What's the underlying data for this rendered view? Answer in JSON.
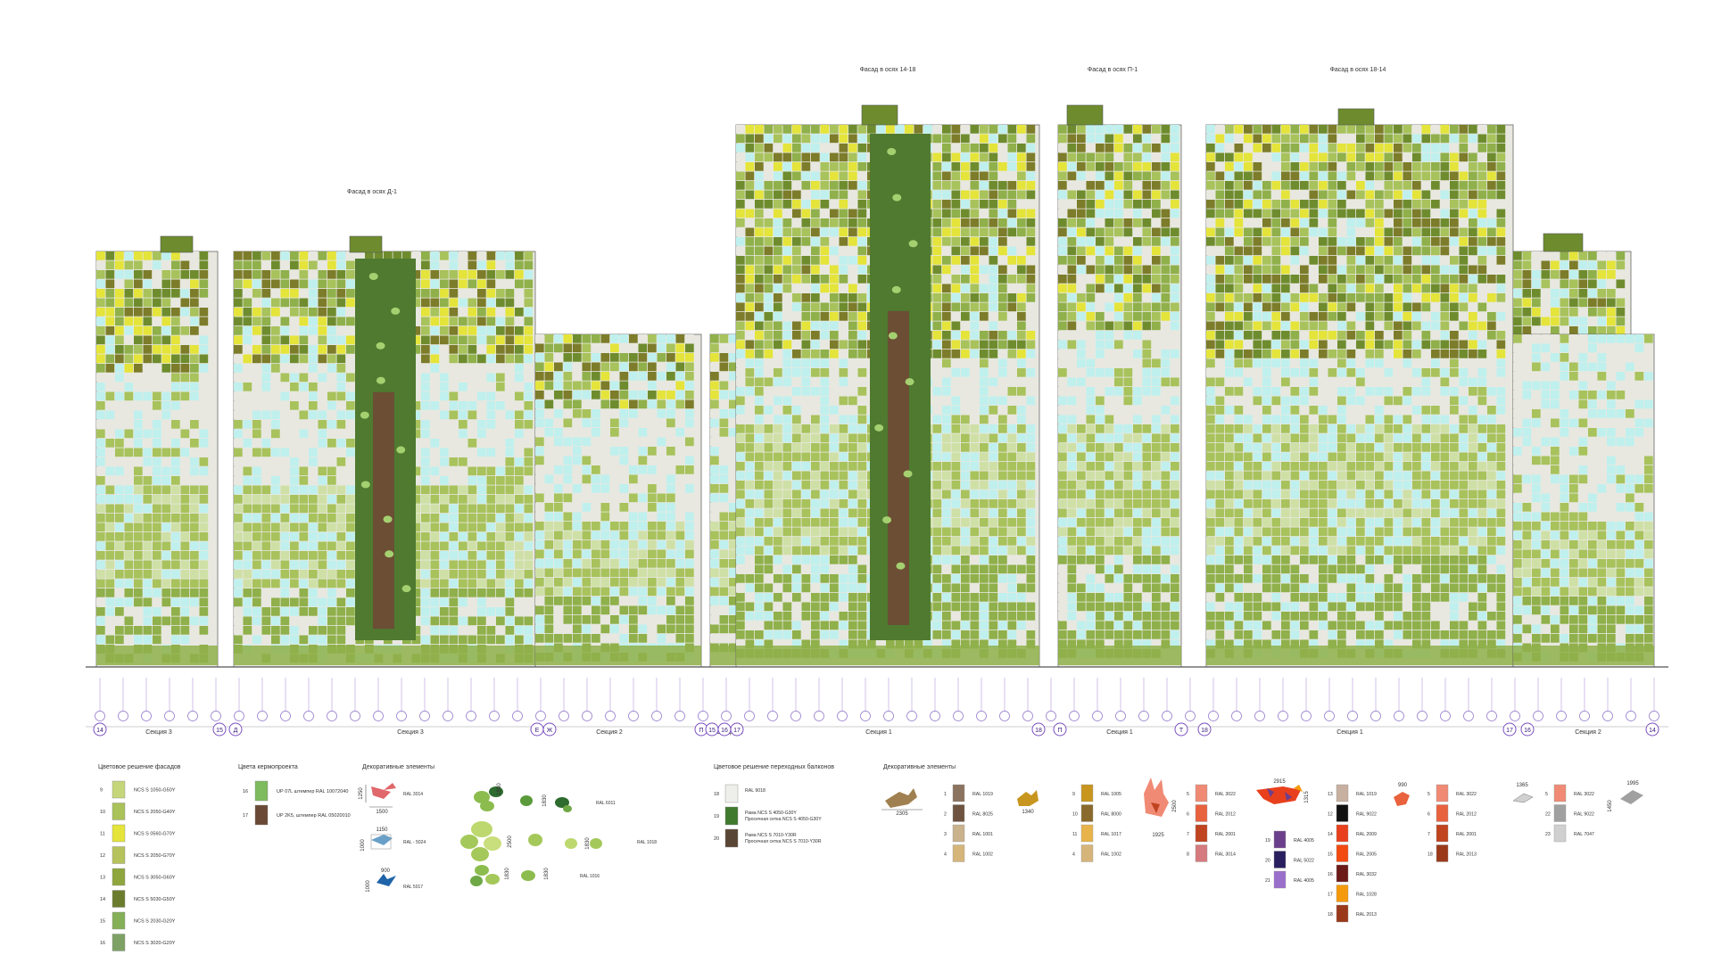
{
  "facade_titles": {
    "d1": "Фасад в осях Д-1",
    "14_18": "Фасад в осях 14-18",
    "p1": "Фасад в осях П-1",
    "18_14": "Фасад в осях 18-14"
  },
  "sections": [
    {
      "label": "Секция 3"
    },
    {
      "label": "Секция 3"
    },
    {
      "label": "Секция 2"
    },
    {
      "label": "Секция 2"
    },
    {
      "label": "Секция 1"
    },
    {
      "label": "Секция 1"
    },
    {
      "label": "Секция 1"
    },
    {
      "label": "Секция 2"
    }
  ],
  "axis_marks": [
    "14",
    "15",
    "Д",
    "Е",
    "Ж",
    "П",
    "15",
    "16",
    "17",
    "18",
    "П",
    "Т",
    "18",
    "17",
    "16",
    "14"
  ],
  "facade_colors": {
    "light": "#e8e8e0",
    "cyan": "#bff0ee",
    "green1": "#8fb04a",
    "green2": "#a8c25c",
    "green3": "#6e8c2e",
    "yellow": "#e4e43a",
    "olive": "#7c7c2a",
    "brown": "#6b4e34",
    "dark_green": "#4f7a30"
  },
  "legend": {
    "facade_colors": {
      "title": "Цветовое решение фасадов",
      "items": [
        {
          "num": "9",
          "code": "NCS S 1050-G50Y",
          "color": "#c5d67a"
        },
        {
          "num": "10",
          "code": "NCS S 2050-G40Y",
          "color": "#a9c25a"
        },
        {
          "num": "11",
          "code": "NCS S 0560-G70Y",
          "color": "#e4e43a"
        },
        {
          "num": "12",
          "code": "NCS S 2050-G70Y",
          "color": "#b6c25c"
        },
        {
          "num": "13",
          "code": "NCS S 3050-G60Y",
          "color": "#8fa63e"
        },
        {
          "num": "14",
          "code": "NCS S 5030-G50Y",
          "color": "#6c7c2e"
        },
        {
          "num": "15",
          "code": "NCS S 2030-G20Y",
          "color": "#86b058"
        },
        {
          "num": "16",
          "code": "NCS S 3020-G20Y",
          "color": "#7ea266"
        }
      ]
    },
    "planter_colors": {
      "title": "Цвета кермопроекта",
      "items": [
        {
          "num": "16",
          "code": "UP 07L штемпер RAL 10072040",
          "color": "#7dbb5e"
        },
        {
          "num": "17",
          "code": "UP 2K5, штемпер RAL 05020010",
          "color": "#6a4a36"
        }
      ]
    },
    "decor_left": {
      "title": "Декоративные элементы",
      "items": [
        {
          "code": "RAL 3014",
          "w": "1500",
          "h": "1250",
          "color": "#e0676a"
        },
        {
          "code": "RAL - 5024",
          "w": "1150",
          "h": "1000",
          "color": "#6aa0c8"
        },
        {
          "code": "RAL 5017",
          "w": "900",
          "h": "1000",
          "color": "#1f63a8"
        }
      ]
    },
    "leaves": [
      {
        "code": "RAL 6011",
        "w1": "1830",
        "w2": "1830"
      },
      {
        "code": "RAL 1018",
        "w1": "2500",
        "w2": "1830"
      },
      {
        "code": "RAL 1016",
        "w1": "1830",
        "w2": "1830"
      }
    ],
    "transitions": {
      "title": "Цветовое решение переходных балконов",
      "items": [
        {
          "num": "18",
          "line1": "RAL 9018",
          "line2": "",
          "color": "#eeeeea"
        },
        {
          "num": "19",
          "line1": "Рама NCS S 4050-G30Y",
          "line2": "Просечная сетка NCS S 4050-G30Y",
          "color": "#3f7a2e"
        },
        {
          "num": "20",
          "line1": "Рама NCS S 7010-Y30R",
          "line2": "Просечная сетка NCS S 7010-Y30R",
          "color": "#5a4634"
        }
      ]
    },
    "decor_right": {
      "title": "Декоративные элементы",
      "dims": {
        "deer_w": "2305",
        "goat_w": "1340",
        "rabbit_h": "2500",
        "rabbit_w": "1925",
        "fox_w": "2915",
        "fox_h": "1315",
        "bird_w": "990",
        "bird2_w": "1365",
        "bird3_w": "1995",
        "bird3_h": "1450"
      },
      "col1": [
        {
          "num": "1",
          "code": "RAL 1019",
          "color": "#8c7360"
        },
        {
          "num": "2",
          "code": "RAL 8025",
          "color": "#6e5440"
        },
        {
          "num": "3",
          "code": "RAL 1001",
          "color": "#c9b28c"
        },
        {
          "num": "4",
          "code": "RAL 1002",
          "color": "#d5b57a"
        }
      ],
      "col2": [
        {
          "num": "9",
          "code": "RAL 1005",
          "color": "#c8961f"
        },
        {
          "num": "10",
          "code": "RAL 8000",
          "color": "#8a6a2c"
        },
        {
          "num": "11",
          "code": "RAL 1017",
          "color": "#e8b34a"
        },
        {
          "num": "4",
          "code": "RAL 1002",
          "color": "#d5b57a"
        }
      ],
      "col3": [
        {
          "num": "5",
          "code": "RAL 3022",
          "color": "#f08a74"
        },
        {
          "num": "6",
          "code": "RAL 2012",
          "color": "#e8623e"
        },
        {
          "num": "7",
          "code": "RAL 2001",
          "color": "#c0441f"
        },
        {
          "num": "8",
          "code": "RAL 3014",
          "color": "#d57a7e"
        }
      ],
      "col4": [
        {
          "num": "19",
          "code": "RAL 4005",
          "color": "#6c3f8c"
        },
        {
          "num": "20",
          "code": "RAL 5022",
          "color": "#2a2060"
        },
        {
          "num": "21",
          "code": "RAL 4005",
          "color": "#9a6fcc"
        }
      ],
      "col5": [
        {
          "num": "13",
          "code": "RAL 1019",
          "color": "#c8b0a0"
        },
        {
          "num": "12",
          "code": "RAL 9022",
          "color": "#111111"
        },
        {
          "num": "14",
          "code": "RAL 2009",
          "color": "#e8401c"
        },
        {
          "num": "15",
          "code": "RAL 2005",
          "color": "#f24a10"
        },
        {
          "num": "16",
          "code": "RAL 3032",
          "color": "#6b1a18"
        },
        {
          "num": "17",
          "code": "RAL 1028",
          "color": "#f59a0c"
        },
        {
          "num": "18",
          "code": "RAL 2013",
          "color": "#9a3a1a"
        }
      ],
      "col6": [
        {
          "num": "5",
          "code": "RAL 3022",
          "color": "#f08a74"
        },
        {
          "num": "6",
          "code": "RAL 2012",
          "color": "#e8623e"
        },
        {
          "num": "7",
          "code": "RAL 2001",
          "color": "#c0441f"
        },
        {
          "num": "18",
          "code": "RAL 2013",
          "color": "#9a3a1a"
        }
      ],
      "col7": [
        {
          "num": "5",
          "code": "RAL 3022",
          "color": "#f08a74"
        },
        {
          "num": "22",
          "code": "RAL 9022",
          "color": "#a0a0a0"
        },
        {
          "num": "23",
          "code": "RAL 7047",
          "color": "#d0d0d0"
        }
      ]
    }
  }
}
